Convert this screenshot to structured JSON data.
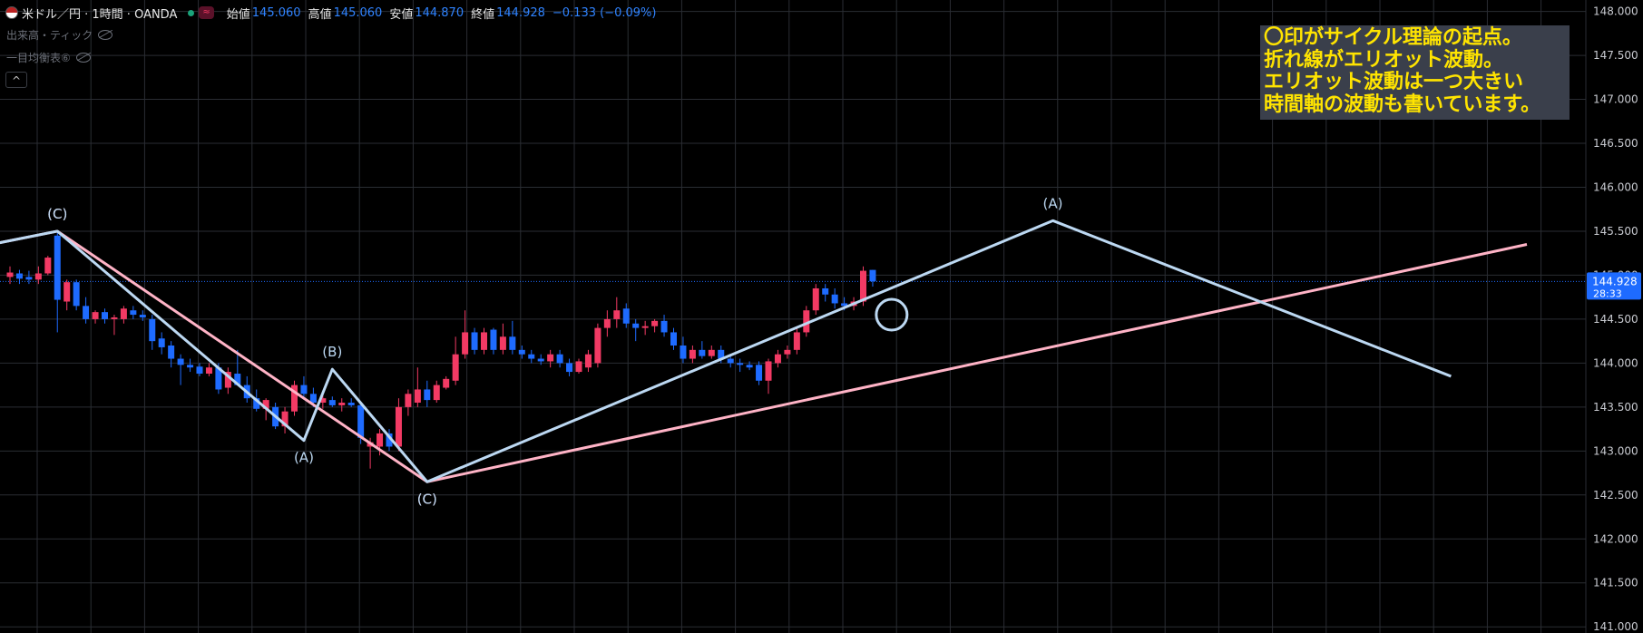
{
  "header": {
    "symbol": "米ドル／円 · 1時間 · OANDA",
    "badge": "≈",
    "open_label": "始値",
    "open_value": "145.060",
    "high_label": "高値",
    "high_value": "145.060",
    "low_label": "安値",
    "low_value": "144.870",
    "close_label": "終値",
    "close_value": "144.928",
    "change": "−0.133 (−0.09%)"
  },
  "indicators": [
    {
      "label": "出来高・ティック"
    },
    {
      "label": "一目均衡表⑥"
    }
  ],
  "collapse_icon": "^",
  "annotation": {
    "lines": [
      "〇印がサイクル理論の起点。",
      "折れ線がエリオット波動。",
      "エリオット波動は一つ大きい",
      "時間軸の波動も書いています。"
    ]
  },
  "price_label": {
    "value": "144.928",
    "countdown": "28:33"
  },
  "colors": {
    "up": "#f23a64",
    "down": "#1e6bff",
    "pink": "#ffb3c6",
    "blue": "#bcd8f2",
    "grid": "#2a2d33",
    "price_tag": "#1e6bff"
  },
  "chart_data": {
    "type": "candlestick",
    "y_ticks": [
      "148.000",
      "147.500",
      "147.000",
      "146.500",
      "146.000",
      "145.500",
      "145.000",
      "144.500",
      "144.000",
      "143.500",
      "143.000",
      "142.500",
      "142.000",
      "141.500",
      "141.000"
    ],
    "ylim": [
      140.93,
      148.13
    ],
    "current_price": 144.928,
    "candles": [
      {
        "o": 144.98,
        "h": 145.1,
        "l": 144.9,
        "c": 145.03
      },
      {
        "o": 145.02,
        "h": 145.06,
        "l": 144.9,
        "c": 144.96
      },
      {
        "o": 144.98,
        "h": 145.05,
        "l": 144.9,
        "c": 144.95
      },
      {
        "o": 144.95,
        "h": 145.1,
        "l": 144.9,
        "c": 145.02
      },
      {
        "o": 145.02,
        "h": 145.22,
        "l": 145.0,
        "c": 145.2
      },
      {
        "o": 145.45,
        "h": 145.48,
        "l": 144.35,
        "c": 144.72
      },
      {
        "o": 144.7,
        "h": 144.95,
        "l": 144.6,
        "c": 144.92
      },
      {
        "o": 144.92,
        "h": 144.95,
        "l": 144.6,
        "c": 144.65
      },
      {
        "o": 144.65,
        "h": 144.75,
        "l": 144.45,
        "c": 144.5
      },
      {
        "o": 144.5,
        "h": 144.6,
        "l": 144.45,
        "c": 144.58
      },
      {
        "o": 144.58,
        "h": 144.62,
        "l": 144.45,
        "c": 144.5
      },
      {
        "o": 144.5,
        "h": 144.55,
        "l": 144.32,
        "c": 144.52
      },
      {
        "o": 144.5,
        "h": 144.65,
        "l": 144.45,
        "c": 144.62
      },
      {
        "o": 144.6,
        "h": 144.65,
        "l": 144.5,
        "c": 144.55
      },
      {
        "o": 144.55,
        "h": 144.6,
        "l": 144.48,
        "c": 144.52
      },
      {
        "o": 144.5,
        "h": 144.55,
        "l": 144.15,
        "c": 144.25
      },
      {
        "o": 144.28,
        "h": 144.35,
        "l": 144.1,
        "c": 144.18
      },
      {
        "o": 144.2,
        "h": 144.25,
        "l": 143.95,
        "c": 144.05
      },
      {
        "o": 144.05,
        "h": 144.1,
        "l": 143.75,
        "c": 143.98
      },
      {
        "o": 143.98,
        "h": 144.05,
        "l": 143.9,
        "c": 143.95
      },
      {
        "o": 143.96,
        "h": 144.0,
        "l": 143.85,
        "c": 143.88
      },
      {
        "o": 143.88,
        "h": 144.0,
        "l": 143.85,
        "c": 143.95
      },
      {
        "o": 143.95,
        "h": 144.0,
        "l": 143.65,
        "c": 143.7
      },
      {
        "o": 143.72,
        "h": 143.95,
        "l": 143.65,
        "c": 143.9
      },
      {
        "o": 143.88,
        "h": 144.15,
        "l": 143.8,
        "c": 143.75
      },
      {
        "o": 143.75,
        "h": 143.85,
        "l": 143.55,
        "c": 143.6
      },
      {
        "o": 143.6,
        "h": 143.7,
        "l": 143.45,
        "c": 143.48
      },
      {
        "o": 143.48,
        "h": 143.6,
        "l": 143.35,
        "c": 143.58
      },
      {
        "o": 143.5,
        "h": 143.55,
        "l": 143.25,
        "c": 143.28
      },
      {
        "o": 143.28,
        "h": 143.5,
        "l": 143.2,
        "c": 143.45
      },
      {
        "o": 143.45,
        "h": 143.8,
        "l": 143.4,
        "c": 143.75
      },
      {
        "o": 143.75,
        "h": 143.85,
        "l": 143.6,
        "c": 143.65
      },
      {
        "o": 143.65,
        "h": 143.72,
        "l": 143.5,
        "c": 143.55
      },
      {
        "o": 143.55,
        "h": 143.65,
        "l": 143.48,
        "c": 143.6
      },
      {
        "o": 143.58,
        "h": 143.62,
        "l": 143.5,
        "c": 143.52
      },
      {
        "o": 143.52,
        "h": 143.6,
        "l": 143.45,
        "c": 143.55
      },
      {
        "o": 143.55,
        "h": 143.6,
        "l": 143.5,
        "c": 143.52
      },
      {
        "o": 143.52,
        "h": 143.55,
        "l": 143.08,
        "c": 143.15
      },
      {
        "o": 143.05,
        "h": 143.15,
        "l": 142.8,
        "c": 143.1
      },
      {
        "o": 143.05,
        "h": 143.25,
        "l": 142.95,
        "c": 143.2
      },
      {
        "o": 143.2,
        "h": 143.25,
        "l": 143.0,
        "c": 143.05
      },
      {
        "o": 143.05,
        "h": 143.6,
        "l": 143.0,
        "c": 143.5
      },
      {
        "o": 143.5,
        "h": 143.7,
        "l": 143.4,
        "c": 143.65
      },
      {
        "o": 143.55,
        "h": 143.95,
        "l": 143.5,
        "c": 143.7
      },
      {
        "o": 143.7,
        "h": 143.8,
        "l": 143.5,
        "c": 143.58
      },
      {
        "o": 143.58,
        "h": 143.8,
        "l": 143.55,
        "c": 143.75
      },
      {
        "o": 143.72,
        "h": 143.85,
        "l": 143.7,
        "c": 143.82
      },
      {
        "o": 143.8,
        "h": 144.3,
        "l": 143.75,
        "c": 144.1
      },
      {
        "o": 144.1,
        "h": 144.6,
        "l": 144.05,
        "c": 144.35
      },
      {
        "o": 144.35,
        "h": 144.4,
        "l": 144.1,
        "c": 144.15
      },
      {
        "o": 144.15,
        "h": 144.4,
        "l": 144.1,
        "c": 144.35
      },
      {
        "o": 144.38,
        "h": 144.4,
        "l": 144.1,
        "c": 144.15
      },
      {
        "o": 144.15,
        "h": 144.45,
        "l": 144.1,
        "c": 144.3
      },
      {
        "o": 144.3,
        "h": 144.48,
        "l": 144.1,
        "c": 144.15
      },
      {
        "o": 144.15,
        "h": 144.2,
        "l": 144.05,
        "c": 144.1
      },
      {
        "o": 144.1,
        "h": 144.15,
        "l": 144.0,
        "c": 144.05
      },
      {
        "o": 144.05,
        "h": 144.1,
        "l": 143.98,
        "c": 144.02
      },
      {
        "o": 144.02,
        "h": 144.15,
        "l": 143.95,
        "c": 144.1
      },
      {
        "o": 144.1,
        "h": 144.15,
        "l": 143.95,
        "c": 144.0
      },
      {
        "o": 144.0,
        "h": 144.05,
        "l": 143.85,
        "c": 143.9
      },
      {
        "o": 143.9,
        "h": 144.05,
        "l": 143.88,
        "c": 144.02
      },
      {
        "o": 143.95,
        "h": 144.15,
        "l": 143.9,
        "c": 144.1
      },
      {
        "o": 144.0,
        "h": 144.45,
        "l": 143.95,
        "c": 144.4
      },
      {
        "o": 144.4,
        "h": 144.6,
        "l": 144.3,
        "c": 144.5
      },
      {
        "o": 144.5,
        "h": 144.75,
        "l": 144.4,
        "c": 144.6
      },
      {
        "o": 144.62,
        "h": 144.68,
        "l": 144.4,
        "c": 144.45
      },
      {
        "o": 144.45,
        "h": 144.5,
        "l": 144.25,
        "c": 144.4
      },
      {
        "o": 144.4,
        "h": 144.48,
        "l": 144.32,
        "c": 144.42
      },
      {
        "o": 144.42,
        "h": 144.5,
        "l": 144.35,
        "c": 144.48
      },
      {
        "o": 144.48,
        "h": 144.55,
        "l": 144.3,
        "c": 144.35
      },
      {
        "o": 144.35,
        "h": 144.4,
        "l": 144.15,
        "c": 144.2
      },
      {
        "o": 144.2,
        "h": 144.3,
        "l": 144.0,
        "c": 144.05
      },
      {
        "o": 144.05,
        "h": 144.2,
        "l": 144.0,
        "c": 144.15
      },
      {
        "o": 144.15,
        "h": 144.25,
        "l": 144.05,
        "c": 144.08
      },
      {
        "o": 144.08,
        "h": 144.2,
        "l": 144.05,
        "c": 144.15
      },
      {
        "o": 144.15,
        "h": 144.2,
        "l": 144.0,
        "c": 144.05
      },
      {
        "o": 144.05,
        "h": 144.1,
        "l": 143.95,
        "c": 144.0
      },
      {
        "o": 144.0,
        "h": 144.05,
        "l": 143.9,
        "c": 143.98
      },
      {
        "o": 143.98,
        "h": 144.02,
        "l": 143.92,
        "c": 143.95
      },
      {
        "o": 143.98,
        "h": 144.02,
        "l": 143.75,
        "c": 143.8
      },
      {
        "o": 143.8,
        "h": 144.05,
        "l": 143.65,
        "c": 144.02
      },
      {
        "o": 144.0,
        "h": 144.15,
        "l": 143.95,
        "c": 144.1
      },
      {
        "o": 144.1,
        "h": 144.2,
        "l": 144.05,
        "c": 144.15
      },
      {
        "o": 144.15,
        "h": 144.4,
        "l": 144.1,
        "c": 144.35
      },
      {
        "o": 144.35,
        "h": 144.65,
        "l": 144.3,
        "c": 144.6
      },
      {
        "o": 144.6,
        "h": 144.9,
        "l": 144.55,
        "c": 144.85
      },
      {
        "o": 144.85,
        "h": 144.9,
        "l": 144.7,
        "c": 144.78
      },
      {
        "o": 144.78,
        "h": 144.85,
        "l": 144.62,
        "c": 144.68
      },
      {
        "o": 144.68,
        "h": 144.75,
        "l": 144.6,
        "c": 144.65
      },
      {
        "o": 144.65,
        "h": 144.75,
        "l": 144.6,
        "c": 144.7
      },
      {
        "o": 144.7,
        "h": 145.1,
        "l": 144.65,
        "c": 145.05
      },
      {
        "o": 145.06,
        "h": 145.06,
        "l": 144.87,
        "c": 144.93
      }
    ],
    "waves": [
      {
        "color": "pink",
        "points": [
          [
            -2,
            145.35
          ],
          [
            5,
            145.5
          ],
          [
            44,
            142.65
          ],
          [
            160,
            145.35
          ]
        ],
        "labels": [
          {
            "i": 5,
            "p": 145.5,
            "text": "(C)",
            "pos": "above"
          },
          {
            "i": 44,
            "p": 142.65,
            "text": "(C)",
            "pos": "below"
          }
        ]
      },
      {
        "color": "blue",
        "points": [
          [
            -2,
            145.35
          ],
          [
            5,
            145.5
          ],
          [
            31,
            143.12
          ],
          [
            34,
            143.93
          ],
          [
            44,
            142.65
          ],
          [
            110,
            145.62
          ],
          [
            152,
            143.85
          ]
        ],
        "labels": [
          {
            "i": 5,
            "p": 145.5,
            "text": "(C)",
            "pos": "above"
          },
          {
            "i": 31,
            "p": 143.12,
            "text": "(A)",
            "pos": "below"
          },
          {
            "i": 34,
            "p": 143.93,
            "text": "(B)",
            "pos": "above"
          },
          {
            "i": 44,
            "p": 142.65,
            "text": "(C)",
            "pos": "below"
          },
          {
            "i": 110,
            "p": 145.62,
            "text": "(A)",
            "pos": "above"
          }
        ]
      }
    ],
    "cycle_marker": {
      "i": 93,
      "p": 144.55
    }
  }
}
